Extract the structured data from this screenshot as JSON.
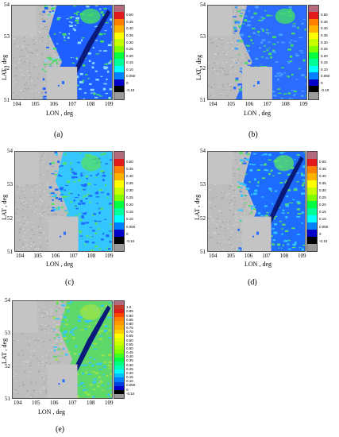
{
  "panels": [
    {
      "id": "a",
      "caption": "(a)",
      "ylabel": "LAT , deg",
      "xlabel": "LON , deg",
      "xticks": [
        "104",
        "105",
        "106",
        "107",
        "108",
        "109"
      ],
      "yticks": [
        "54",
        "53",
        "52",
        "51"
      ],
      "colorbar_labels": [
        "0.50",
        "0.45",
        "0.40",
        "0.35",
        "0.30",
        "0.25",
        "0.20",
        "0.15",
        "0.10",
        "0.050",
        "0",
        "-0.10"
      ],
      "colorbar_colors": [
        "#b46a7d",
        "#e31a1c",
        "#ff7f00",
        "#ffb300",
        "#ffff00",
        "#c8ff00",
        "#80ff00",
        "#00ff40",
        "#00ff99",
        "#00ffff",
        "#0080ff",
        "#0000c8",
        "#000000",
        "#9a9a9a"
      ]
    },
    {
      "id": "b",
      "caption": "(b)",
      "ylabel": "LAT , deg",
      "xlabel": "LON , deg",
      "xticks": [
        "104",
        "105",
        "106",
        "107",
        "108",
        "109"
      ],
      "yticks": [
        "54",
        "53",
        "52",
        "51"
      ],
      "colorbar_labels": [
        "0.50",
        "0.45",
        "0.40",
        "0.35",
        "0.30",
        "0.25",
        "0.20",
        "0.15",
        "0.10",
        "0.050",
        "0",
        "-0.10"
      ],
      "colorbar_colors": [
        "#b46a7d",
        "#e31a1c",
        "#ff7f00",
        "#ffb300",
        "#ffff00",
        "#c8ff00",
        "#80ff00",
        "#00ff40",
        "#00ff99",
        "#00ffff",
        "#0080ff",
        "#0000c8",
        "#000000",
        "#9a9a9a"
      ]
    },
    {
      "id": "c",
      "caption": "(c)",
      "ylabel": "LAT , deg",
      "xlabel": "LON , deg",
      "xticks": [
        "104",
        "105",
        "106",
        "107",
        "108",
        "109"
      ],
      "yticks": [
        "54",
        "53",
        "52",
        "51"
      ],
      "colorbar_labels": [
        "0.50",
        "0.45",
        "0.40",
        "0.35",
        "0.30",
        "0.25",
        "0.20",
        "0.15",
        "0.10",
        "0.050",
        "0",
        "-0.10"
      ],
      "colorbar_colors": [
        "#b46a7d",
        "#e31a1c",
        "#ff7f00",
        "#ffb300",
        "#ffff00",
        "#c8ff00",
        "#80ff00",
        "#00ff40",
        "#00ff99",
        "#00ffff",
        "#0080ff",
        "#0000c8",
        "#000000",
        "#9a9a9a"
      ]
    },
    {
      "id": "d",
      "caption": "(d)",
      "ylabel": "LAT , deg",
      "xlabel": "LON , deg",
      "xticks": [
        "104",
        "105",
        "106",
        "107",
        "108",
        "109"
      ],
      "yticks": [
        "54",
        "53",
        "52",
        "51"
      ],
      "colorbar_labels": [
        "0.50",
        "0.45",
        "0.40",
        "0.35",
        "0.30",
        "0.25",
        "0.20",
        "0.15",
        "0.10",
        "0.050",
        "0",
        "-0.10"
      ],
      "colorbar_colors": [
        "#b46a7d",
        "#e31a1c",
        "#ff7f00",
        "#ffb300",
        "#ffff00",
        "#c8ff00",
        "#80ff00",
        "#00ff40",
        "#00ff99",
        "#00ffff",
        "#0080ff",
        "#0000c8",
        "#000000",
        "#9a9a9a"
      ]
    },
    {
      "id": "e",
      "caption": "(e)",
      "ylabel": "LAT , deg",
      "xlabel": "LON , deg",
      "xticks": [
        "104",
        "105",
        "106",
        "107",
        "108",
        "109"
      ],
      "yticks": [
        "54",
        "53",
        "52",
        "51"
      ],
      "colorbar_labels": [
        "1.0",
        "0.95",
        "0.90",
        "0.85",
        "0.80",
        "0.75",
        "0.70",
        "0.65",
        "0.60",
        "0.55",
        "0.50",
        "0.45",
        "0.40",
        "0.35",
        "0.30",
        "0.25",
        "0.20",
        "0.15",
        "0.10",
        "0.050",
        "0",
        "-0.10"
      ],
      "colorbar_colors": [
        "#b46a7d",
        "#c0392b",
        "#e31a1c",
        "#ff4500",
        "#ff7f00",
        "#ff9900",
        "#ffb300",
        "#ffd000",
        "#ffff00",
        "#e0ff00",
        "#c8ff00",
        "#a0ff00",
        "#80ff00",
        "#40ff20",
        "#00ff40",
        "#00ff80",
        "#00ffb0",
        "#00ffff",
        "#00c0ff",
        "#0080ff",
        "#0040e0",
        "#0000c8",
        "#000000",
        "#9a9a9a"
      ]
    }
  ]
}
